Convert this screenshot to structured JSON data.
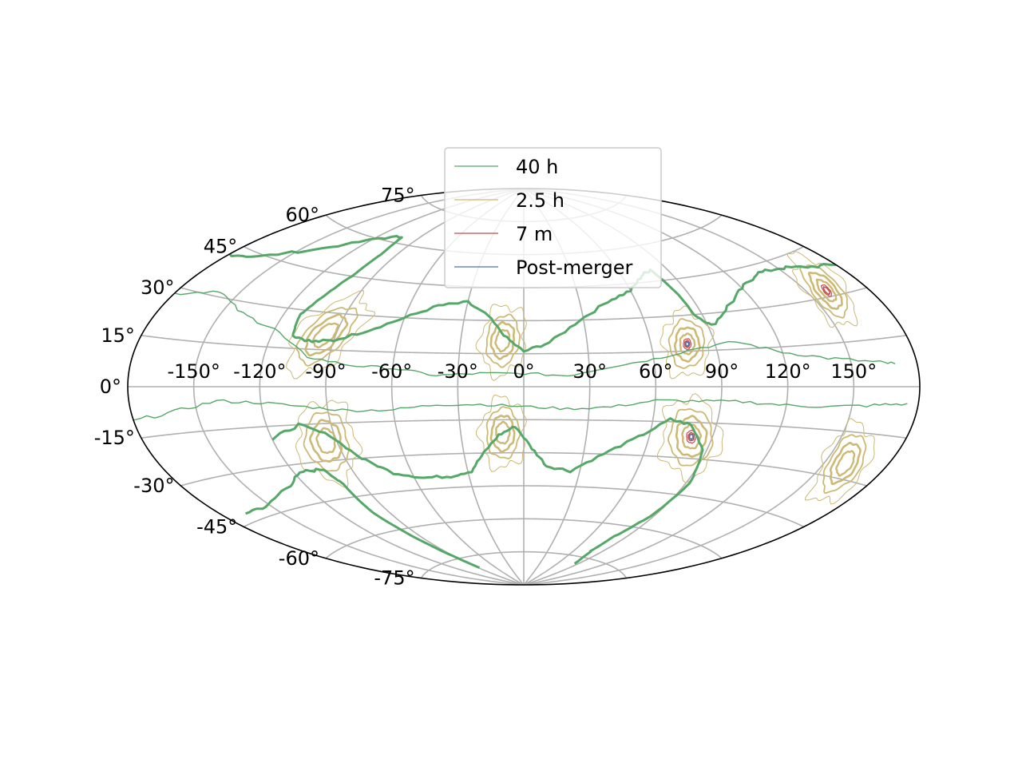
{
  "chart_data": {
    "type": "contour",
    "projection": "aitoff",
    "grid": true,
    "legend_position": "top-center",
    "x_ticks": [
      "-150°",
      "-120°",
      "-90°",
      "-60°",
      "-30°",
      "0°",
      "30°",
      "60°",
      "90°",
      "120°",
      "150°"
    ],
    "x_tick_values": [
      -150,
      -120,
      -90,
      -60,
      -30,
      0,
      30,
      60,
      90,
      120,
      150
    ],
    "y_ticks": [
      "-75°",
      "-60°",
      "-45°",
      "-30°",
      "-15°",
      "0°",
      "15°",
      "30°",
      "45°",
      "60°",
      "75°"
    ],
    "y_tick_values": [
      -75,
      -60,
      -45,
      -30,
      -15,
      0,
      15,
      30,
      45,
      60,
      75
    ],
    "series": [
      {
        "name": "40 h",
        "color": "#55a868"
      },
      {
        "name": "2.5 h",
        "color": "#ccb974"
      },
      {
        "name": "7 m",
        "color": "#c44e52"
      },
      {
        "name": "Post-merger",
        "color": "#4c72b0"
      }
    ],
    "blobs": [
      {
        "lon": -95,
        "lat": 21,
        "sx": 12,
        "sy": 18,
        "rot": -35,
        "levels": [
          "2.5 h"
        ]
      },
      {
        "lon": -10,
        "lat": 21,
        "sx": 10,
        "sy": 16,
        "rot": -5,
        "levels": [
          "2.5 h"
        ]
      },
      {
        "lon": 77,
        "lat": 18,
        "sx": 10,
        "sy": 15,
        "rot": -30,
        "levels": [
          "2.5 h",
          "7 m",
          "Post-merger"
        ]
      },
      {
        "lon": 160,
        "lat": 32,
        "sx": 8,
        "sy": 14,
        "rot": -40,
        "levels": [
          "2.5 h",
          "7 m"
        ]
      },
      {
        "lon": -95,
        "lat": -22,
        "sx": 12,
        "sy": 18,
        "rot": -35,
        "levels": [
          "2.5 h"
        ]
      },
      {
        "lon": -10,
        "lat": -21,
        "sx": 10,
        "sy": 16,
        "rot": -5,
        "levels": [
          "2.5 h"
        ]
      },
      {
        "lon": 80,
        "lat": -21,
        "sx": 12,
        "sy": 18,
        "rot": 35,
        "levels": [
          "2.5 h",
          "7 m",
          "Post-merger"
        ]
      },
      {
        "lon": 160,
        "lat": -25,
        "sx": 9,
        "sy": 15,
        "rot": 40,
        "levels": [
          "2.5 h"
        ]
      }
    ],
    "curves": [
      {
        "series": "40 h",
        "width": 3,
        "points": [
          [
            -180,
            42
          ],
          [
            -165,
            44
          ],
          [
            -140,
            52
          ],
          [
            -118,
            60
          ],
          [
            -103,
            63
          ],
          [
            -100,
            55
          ],
          [
            -102,
            45
          ],
          [
            -108,
            35
          ],
          [
            -112,
            28
          ],
          [
            -110,
            20
          ],
          [
            -100,
            18
          ],
          [
            -90,
            19
          ],
          [
            -75,
            24
          ],
          [
            -60,
            30
          ],
          [
            -45,
            36
          ],
          [
            -30,
            38
          ],
          [
            -18,
            32
          ],
          [
            -8,
            22
          ],
          [
            0,
            16
          ],
          [
            12,
            20
          ],
          [
            28,
            30
          ],
          [
            45,
            38
          ],
          [
            60,
            42
          ],
          [
            72,
            48
          ],
          [
            80,
            50
          ],
          [
            84,
            40
          ],
          [
            86,
            30
          ],
          [
            92,
            25
          ],
          [
            105,
            32
          ],
          [
            120,
            38
          ],
          [
            135,
            42
          ],
          [
            150,
            42
          ],
          [
            165,
            40
          ],
          [
            180,
            38
          ]
        ]
      },
      {
        "series": "40 h",
        "width": 3,
        "points": [
          [
            -168,
            -42
          ],
          [
            -150,
            -42
          ],
          [
            -128,
            -37
          ],
          [
            -115,
            -33
          ],
          [
            -104,
            -33
          ],
          [
            -100,
            -40
          ],
          [
            -100,
            -52
          ],
          [
            -95,
            -65
          ],
          [
            -90,
            -75
          ],
          [
            -88,
            -80
          ]
        ]
      },
      {
        "series": "40 h",
        "width": 3,
        "points": [
          [
            -120,
            -20
          ],
          [
            -105,
            -15
          ],
          [
            -92,
            -20
          ],
          [
            -82,
            -30
          ],
          [
            -70,
            -37
          ],
          [
            -55,
            -40
          ],
          [
            -40,
            -40
          ],
          [
            -28,
            -38
          ],
          [
            -20,
            -30
          ],
          [
            -12,
            -22
          ],
          [
            -4,
            -18
          ],
          [
            4,
            -28
          ],
          [
            12,
            -36
          ],
          [
            25,
            -38
          ],
          [
            40,
            -30
          ],
          [
            55,
            -22
          ],
          [
            68,
            -14
          ],
          [
            78,
            -16
          ],
          [
            88,
            -26
          ],
          [
            92,
            -40
          ],
          [
            88,
            -55
          ],
          [
            80,
            -65
          ],
          [
            78,
            -72
          ],
          [
            85,
            -78
          ]
        ]
      },
      {
        "series": "40 h",
        "width": 1.4,
        "points": [
          [
            -180,
            28
          ],
          [
            -160,
            32
          ],
          [
            -140,
            26
          ],
          [
            -120,
            22
          ],
          [
            -100,
            12
          ],
          [
            -80,
            9
          ],
          [
            -60,
            8
          ],
          [
            -40,
            5
          ],
          [
            -20,
            6
          ],
          [
            0,
            6
          ],
          [
            20,
            5
          ],
          [
            40,
            9
          ],
          [
            60,
            12
          ],
          [
            80,
            16
          ],
          [
            100,
            18
          ],
          [
            120,
            13
          ],
          [
            140,
            10
          ],
          [
            160,
            8
          ],
          [
            170,
            7
          ]
        ]
      },
      {
        "series": "40 h",
        "width": 1.4,
        "points": [
          [
            -180,
            -10
          ],
          [
            -160,
            -8
          ],
          [
            -140,
            -5
          ],
          [
            -120,
            -6
          ],
          [
            -100,
            -8
          ],
          [
            -80,
            -10
          ],
          [
            -60,
            -10
          ],
          [
            -40,
            -8
          ],
          [
            -20,
            -8
          ],
          [
            0,
            -9
          ],
          [
            20,
            -10
          ],
          [
            40,
            -9
          ],
          [
            60,
            -6
          ],
          [
            80,
            -6
          ],
          [
            100,
            -6
          ],
          [
            120,
            -7
          ],
          [
            140,
            -7
          ],
          [
            160,
            -6
          ],
          [
            175,
            -5
          ]
        ]
      }
    ]
  },
  "legend": {
    "entries": [
      {
        "label": "40 h",
        "color": "#55a868"
      },
      {
        "label": "2.5 h",
        "color": "#ccb974"
      },
      {
        "label": "7 m",
        "color": "#c44e52"
      },
      {
        "label": "Post-merger",
        "color": "#4c72b0"
      }
    ]
  }
}
